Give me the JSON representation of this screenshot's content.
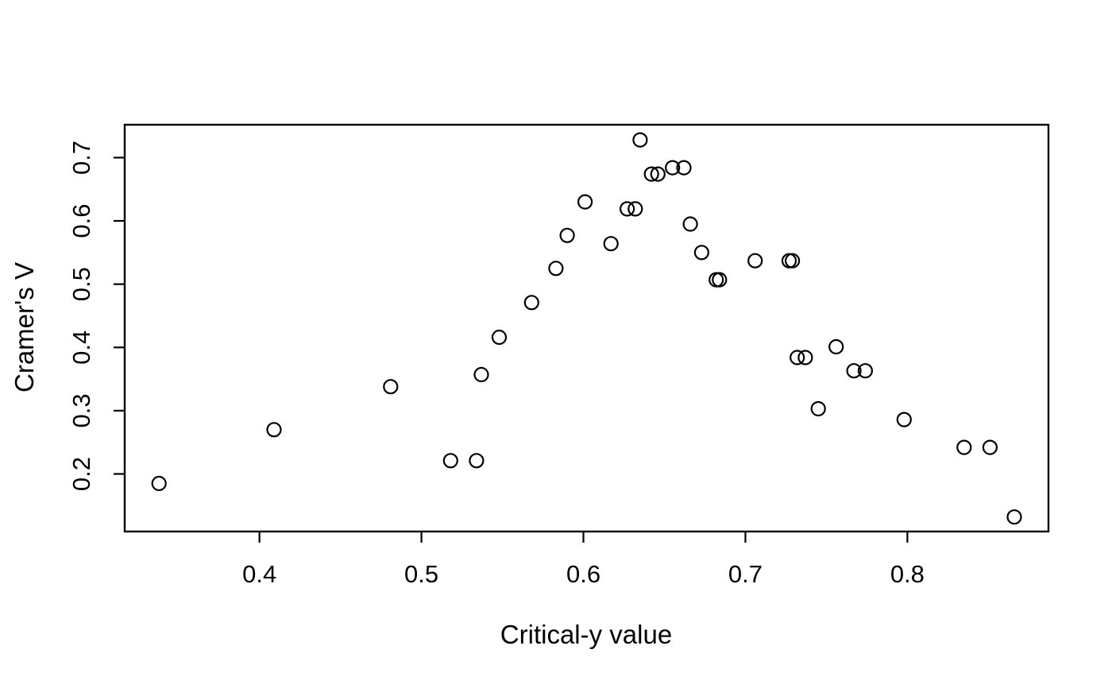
{
  "chart_data": {
    "type": "scatter",
    "title": "",
    "xlabel": "Critical-y value",
    "ylabel": "Cramer's V",
    "xlim": [
      0.3168,
      0.8871
    ],
    "ylim": [
      0.109,
      0.752
    ],
    "xticks": [
      0.4,
      0.5,
      0.6,
      0.7,
      0.8
    ],
    "yticks": [
      0.2,
      0.3,
      0.4,
      0.5,
      0.6,
      0.7
    ],
    "grid": false,
    "legend_position": "none",
    "marker": "open-circle",
    "marker_color": "#000000",
    "background_color": "#ffffff",
    "box_color": "#000000",
    "points": [
      {
        "x": 0.338,
        "y": 0.185
      },
      {
        "x": 0.409,
        "y": 0.27
      },
      {
        "x": 0.481,
        "y": 0.338
      },
      {
        "x": 0.518,
        "y": 0.221
      },
      {
        "x": 0.534,
        "y": 0.221
      },
      {
        "x": 0.537,
        "y": 0.357
      },
      {
        "x": 0.548,
        "y": 0.416
      },
      {
        "x": 0.568,
        "y": 0.471
      },
      {
        "x": 0.583,
        "y": 0.525
      },
      {
        "x": 0.59,
        "y": 0.577
      },
      {
        "x": 0.601,
        "y": 0.63
      },
      {
        "x": 0.617,
        "y": 0.564
      },
      {
        "x": 0.627,
        "y": 0.619
      },
      {
        "x": 0.632,
        "y": 0.619
      },
      {
        "x": 0.635,
        "y": 0.728
      },
      {
        "x": 0.642,
        "y": 0.674
      },
      {
        "x": 0.646,
        "y": 0.674
      },
      {
        "x": 0.655,
        "y": 0.684
      },
      {
        "x": 0.662,
        "y": 0.684
      },
      {
        "x": 0.666,
        "y": 0.595
      },
      {
        "x": 0.673,
        "y": 0.55
      },
      {
        "x": 0.682,
        "y": 0.507
      },
      {
        "x": 0.684,
        "y": 0.507
      },
      {
        "x": 0.706,
        "y": 0.537
      },
      {
        "x": 0.727,
        "y": 0.537
      },
      {
        "x": 0.729,
        "y": 0.537
      },
      {
        "x": 0.732,
        "y": 0.384
      },
      {
        "x": 0.737,
        "y": 0.384
      },
      {
        "x": 0.745,
        "y": 0.303
      },
      {
        "x": 0.756,
        "y": 0.401
      },
      {
        "x": 0.767,
        "y": 0.363
      },
      {
        "x": 0.774,
        "y": 0.363
      },
      {
        "x": 0.798,
        "y": 0.286
      },
      {
        "x": 0.835,
        "y": 0.242
      },
      {
        "x": 0.851,
        "y": 0.242
      },
      {
        "x": 0.866,
        "y": 0.132
      }
    ]
  }
}
